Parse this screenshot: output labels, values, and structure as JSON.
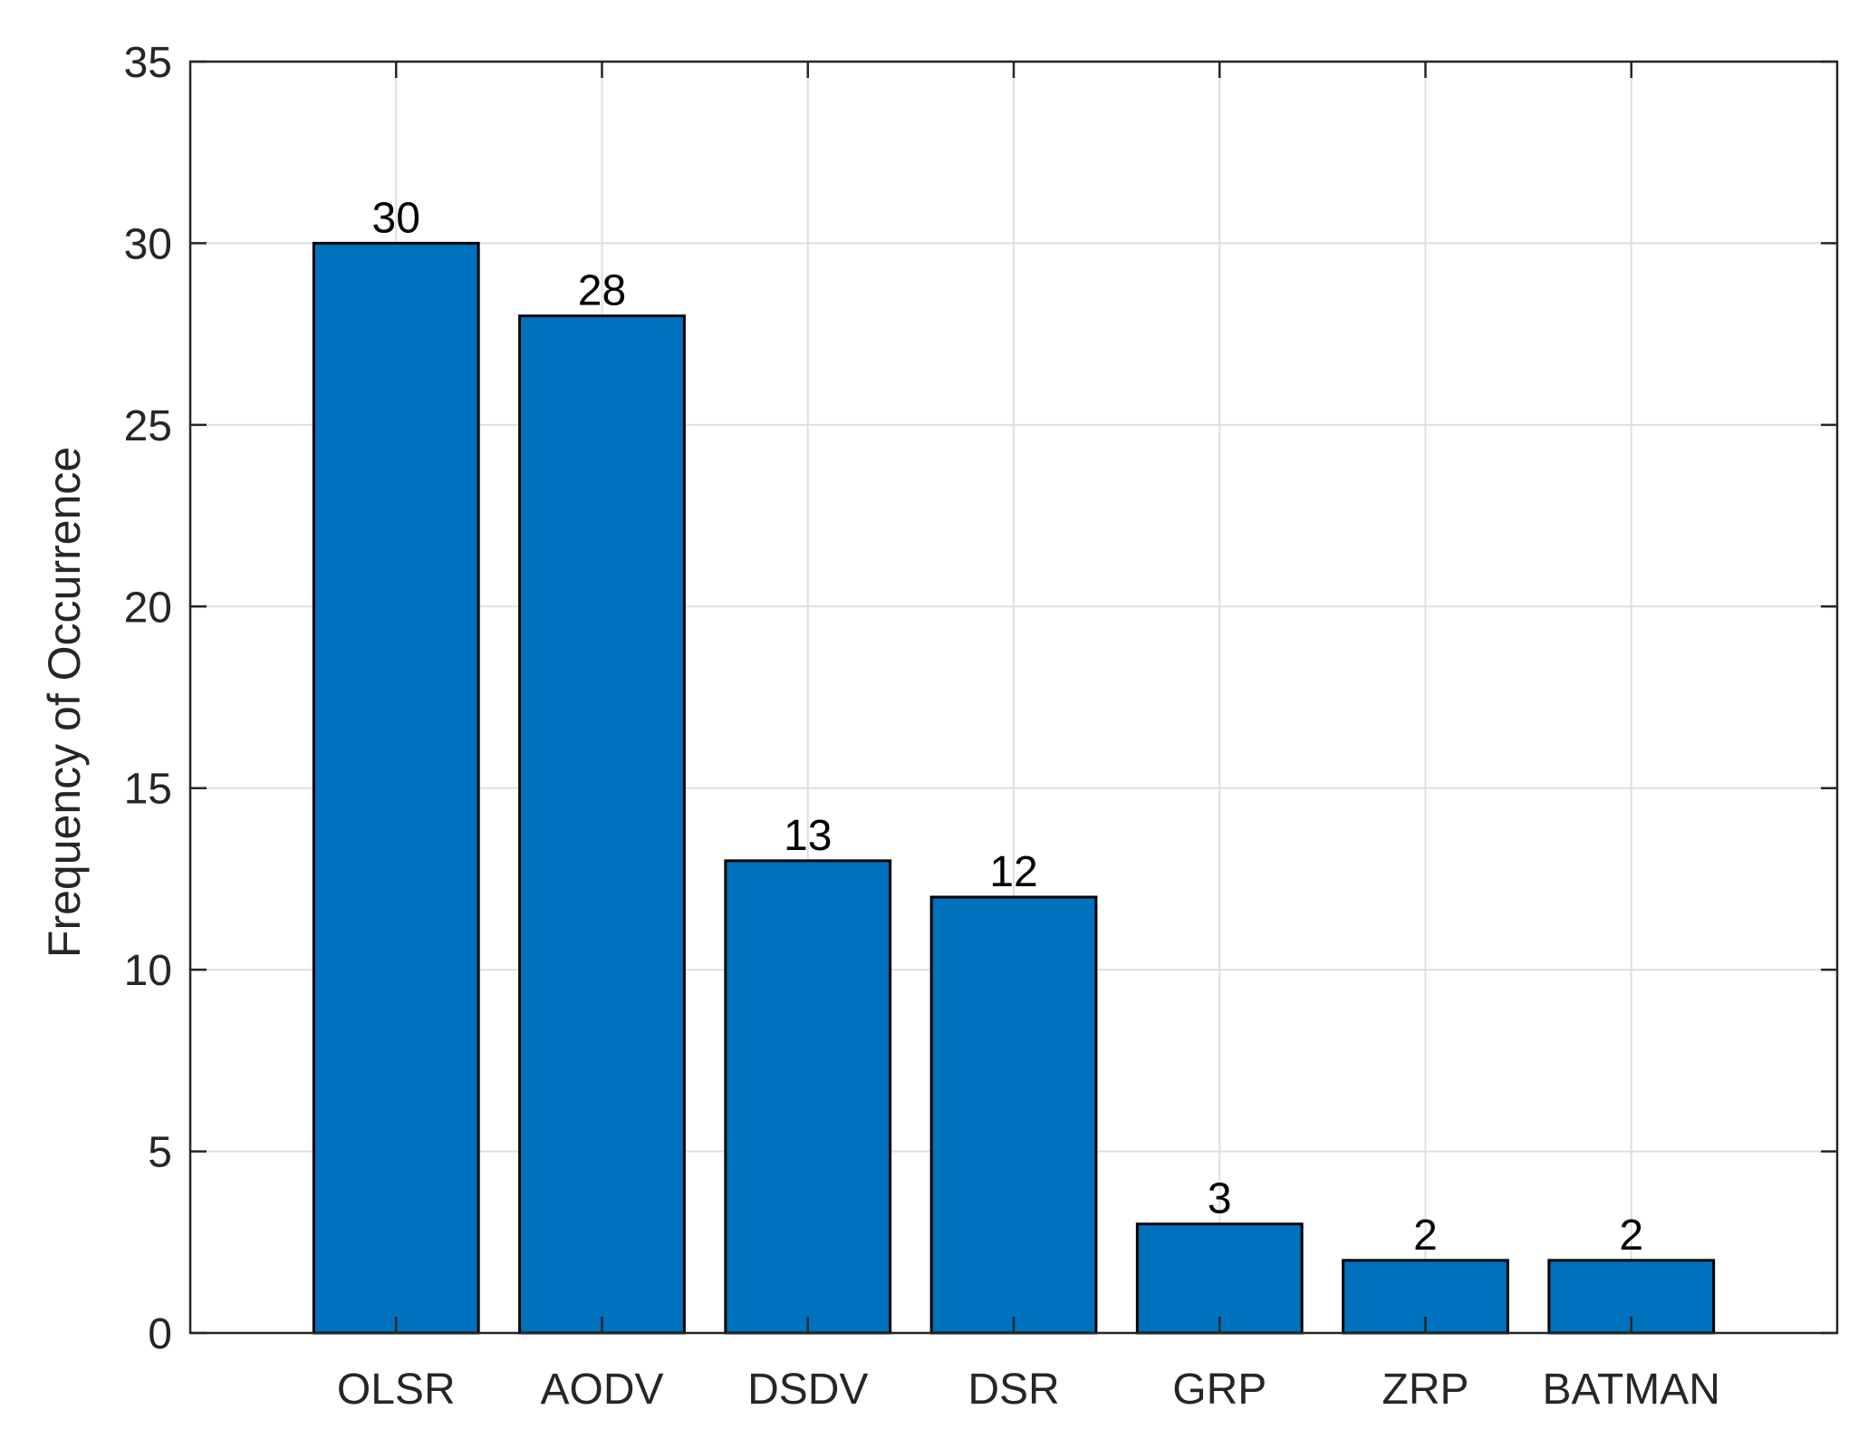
{
  "chart_data": {
    "type": "bar",
    "categories": [
      "OLSR",
      "AODV",
      "DSDV",
      "DSR",
      "GRP",
      "ZRP",
      "BATMAN"
    ],
    "values": [
      30,
      28,
      13,
      12,
      3,
      2,
      2
    ],
    "data_labels": [
      "30",
      "28",
      "13",
      "12",
      "3",
      "2",
      "2"
    ],
    "title": "",
    "xlabel": "",
    "ylabel": "Frequency of Occurrence",
    "ylim": [
      0,
      35
    ],
    "yticks": [
      0,
      5,
      10,
      15,
      20,
      25,
      30,
      35
    ],
    "ytick_labels": [
      "0",
      "5",
      "10",
      "15",
      "20",
      "25",
      "30",
      "35"
    ],
    "grid": true,
    "legend": "none",
    "colors": {
      "bar_fill": "#0072BD",
      "bar_edge": "#000000",
      "grid": "#DFDFDF",
      "axis": "#262626"
    }
  }
}
